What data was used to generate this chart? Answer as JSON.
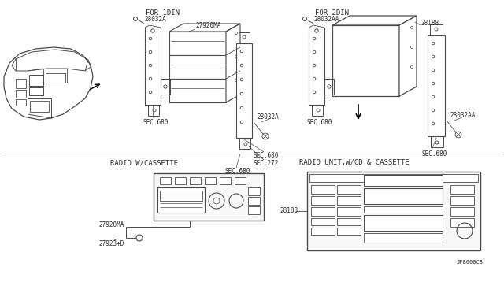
{
  "bg_color": "#ffffff",
  "line_color": "#4a4a4a",
  "text_color": "#2a2a2a",
  "fig_width": 6.4,
  "fig_height": 3.72,
  "dpi": 100,
  "labels": {
    "for1din": "FOR 1DIN",
    "for2din": "FOR 2DIN",
    "part_28032A_1": "28032A",
    "part_28032AA_1": "28032AA",
    "part_27920MA_1": "27920MA",
    "part_28188_top": "28188",
    "part_28032A_2": "28032A",
    "part_28032AA_2": "28032AA",
    "sec680_left1": "SEC.680",
    "sec680_right1": "SEC.680",
    "sec680_right2": "SEC.680",
    "sec272": "SEC.272",
    "sec680_bot": "SEC.680",
    "sec680_left2": "SEC.680",
    "sec680_right3": "SEC.680",
    "radio_cassette": "RADIO W/CASSETTE",
    "radio_cd": "RADIO UNIT,W/CD & CASSETTE",
    "part_27920MA_2": "27920MA",
    "part_27923D": "27923+D",
    "part_28188_2": "28188",
    "code": "JP8000C8"
  }
}
